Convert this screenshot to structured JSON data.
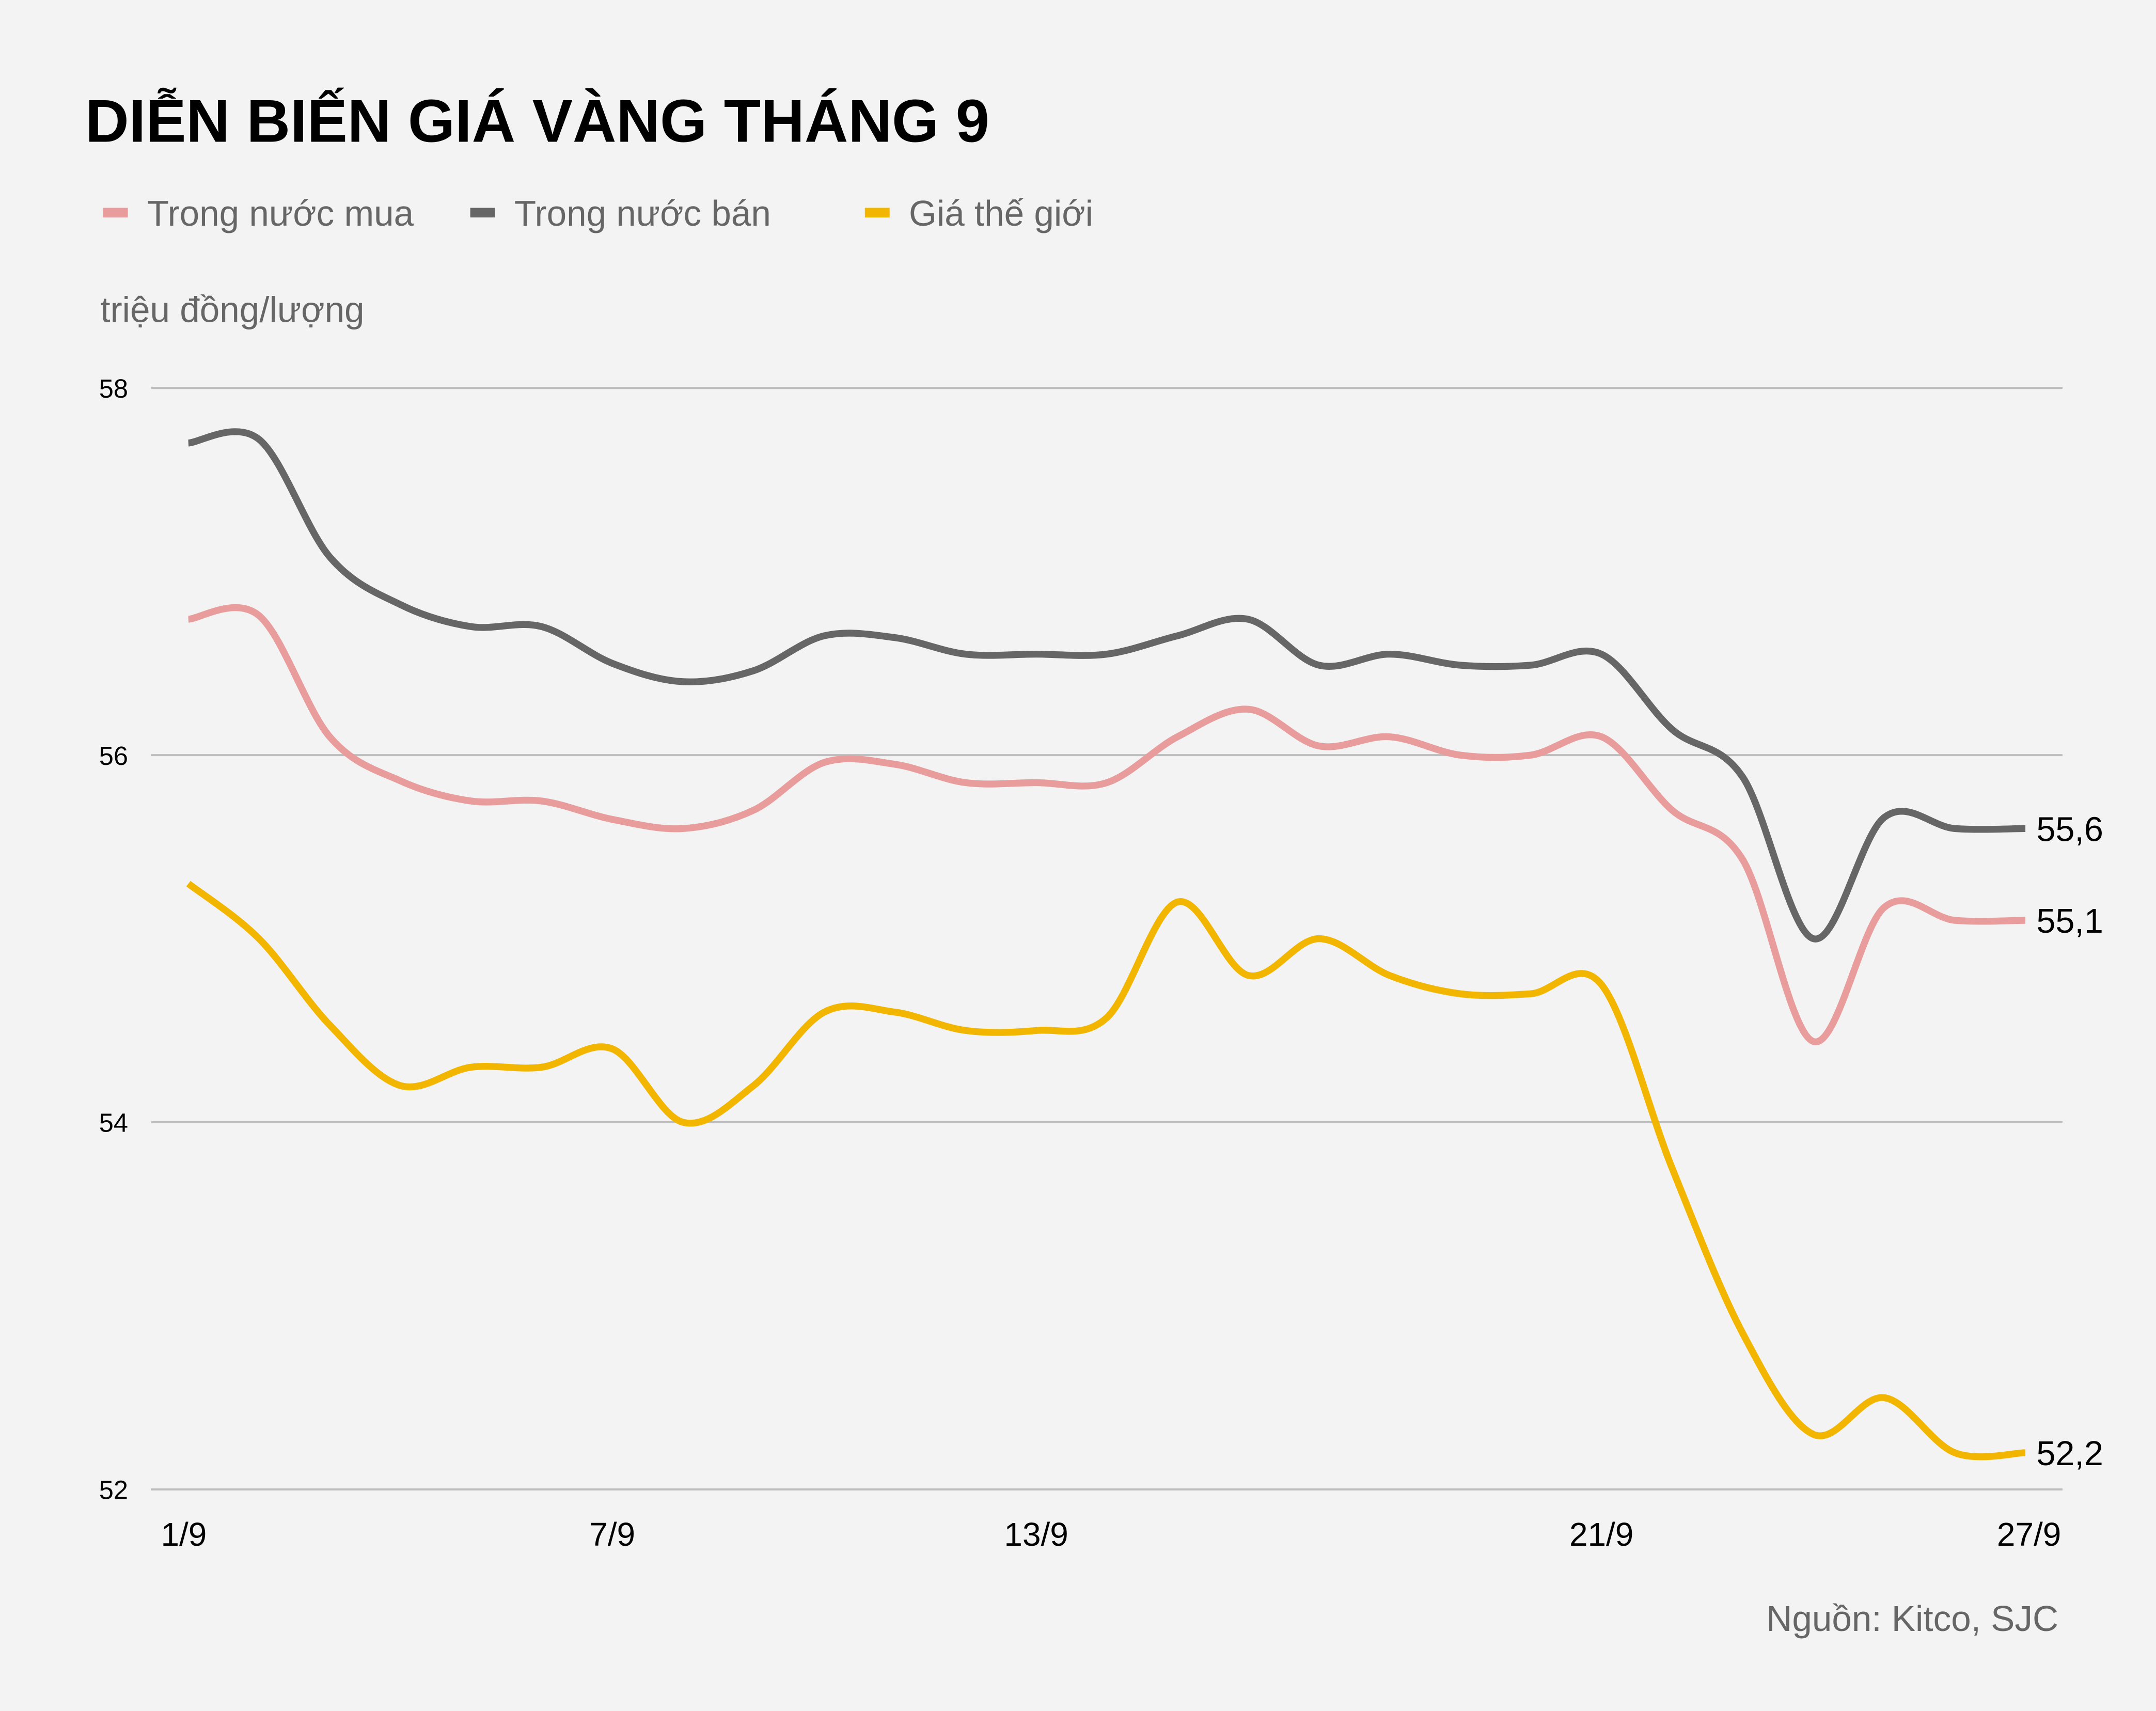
{
  "chart_data": {
    "type": "line",
    "title": "DIỄN BIẾN GIÁ VÀNG THÁNG 9",
    "ylabel": "triệu đồng/lượng",
    "xlabel": "",
    "source": "Nguồn: Kitco, SJC",
    "ylim": [
      52,
      58
    ],
    "yticks": [
      "58",
      "56",
      "54",
      "52"
    ],
    "ytick_values": [
      58,
      56,
      54,
      52
    ],
    "x": [
      1,
      2,
      3,
      4,
      5,
      6,
      7,
      8,
      9,
      10,
      11,
      12,
      13,
      14,
      15,
      16,
      17,
      18,
      19,
      20,
      21,
      22,
      23,
      24,
      25,
      26,
      27
    ],
    "xticks": [
      {
        "day": 1,
        "label": "1/9"
      },
      {
        "day": 7,
        "label": "7/9"
      },
      {
        "day": 13,
        "label": "13/9"
      },
      {
        "day": 21,
        "label": "21/9"
      },
      {
        "day": 27,
        "label": "27/9"
      }
    ],
    "grid": true,
    "legend_position": "top-left",
    "series": [
      {
        "name": "Trong nước mua",
        "color": "#e89c9c",
        "end_label": "55,1",
        "values": [
          56.74,
          56.76,
          56.1,
          55.86,
          55.75,
          55.75,
          55.65,
          55.6,
          55.7,
          55.96,
          55.95,
          55.85,
          55.85,
          55.85,
          56.1,
          56.25,
          56.05,
          56.1,
          56.0,
          56.0,
          56.1,
          55.7,
          55.43,
          54.44,
          55.17,
          55.1,
          55.1
        ]
      },
      {
        "name": "Trong nước bán",
        "color": "#666666",
        "end_label": "55,6",
        "values": [
          57.7,
          57.72,
          57.08,
          56.82,
          56.7,
          56.7,
          56.5,
          56.4,
          56.46,
          56.65,
          56.64,
          56.55,
          56.55,
          56.55,
          56.65,
          56.74,
          56.49,
          56.55,
          56.49,
          56.49,
          56.55,
          56.14,
          55.88,
          55.0,
          55.66,
          55.6,
          55.6
        ]
      },
      {
        "name": "Giá thế giới",
        "color": "#f2b600",
        "end_label": "52,2",
        "values": [
          55.3,
          55.0,
          54.53,
          54.2,
          54.3,
          54.3,
          54.4,
          54.0,
          54.2,
          54.6,
          54.6,
          54.5,
          54.5,
          54.57,
          55.2,
          54.8,
          55.0,
          54.8,
          54.7,
          54.7,
          54.75,
          53.75,
          52.85,
          52.3,
          52.5,
          52.2,
          52.2
        ]
      }
    ]
  }
}
